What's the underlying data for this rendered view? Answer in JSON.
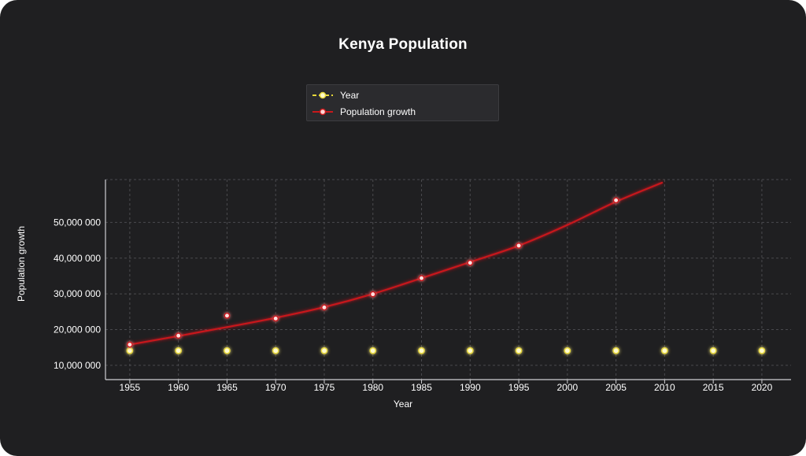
{
  "colors": {
    "background": "#1f1f21",
    "year_series": "#e8d83a",
    "population_series": "#c8191c",
    "grid": "#4a4a4e",
    "axis": "#cfcfd2",
    "text": "#ffffff"
  },
  "chart_data": {
    "type": "line",
    "title": "Kenya Population",
    "xlabel": "Year",
    "ylabel": "Population growth",
    "xlim": [
      1952.5,
      2023
    ],
    "ylim": [
      6000000,
      62000000
    ],
    "x_ticks": [
      "1955",
      "1960",
      "1965",
      "1970",
      "1975",
      "1980",
      "1985",
      "1990",
      "1995",
      "2000",
      "2005",
      "2010",
      "2015",
      "2020"
    ],
    "y_ticks": [
      "10,000 000",
      "20,000 000",
      "30,000 000",
      "40,000 000",
      "50,000 000"
    ],
    "y_tick_values": [
      10000000,
      20000000,
      30000000,
      40000000,
      50000000
    ],
    "grid": true,
    "legend_position": "top-center",
    "series": [
      {
        "name": "Year",
        "style": "dashed",
        "x": [
          1955,
          1960,
          1965,
          1970,
          1975,
          1980,
          1985,
          1990,
          1995,
          2000,
          2005,
          2010,
          2015,
          2020
        ],
        "y": [
          14100000,
          14100000,
          14100000,
          14100000,
          14100000,
          14100000,
          14100000,
          14100000,
          14100000,
          14100000,
          14100000,
          14100000,
          14100000,
          14100000
        ]
      },
      {
        "name": "Population growth",
        "style": "solid",
        "x": [
          1955,
          1960,
          1965,
          1970,
          1975,
          1980,
          1985,
          1990,
          1995,
          2005
        ],
        "y": [
          15800000,
          18300000,
          23900000,
          23100000,
          26200000,
          29900000,
          34400000,
          38700000,
          43500000,
          56200000
        ],
        "trend_x": [
          1955,
          1960,
          1965,
          1970,
          1975,
          1980,
          1985,
          1990,
          1995,
          2000,
          2005,
          2009.8
        ],
        "trend_y": [
          15800000,
          18200000,
          20700000,
          23300000,
          26300000,
          30000000,
          34400000,
          38900000,
          43500000,
          49300000,
          55800000,
          61200000
        ]
      }
    ]
  }
}
